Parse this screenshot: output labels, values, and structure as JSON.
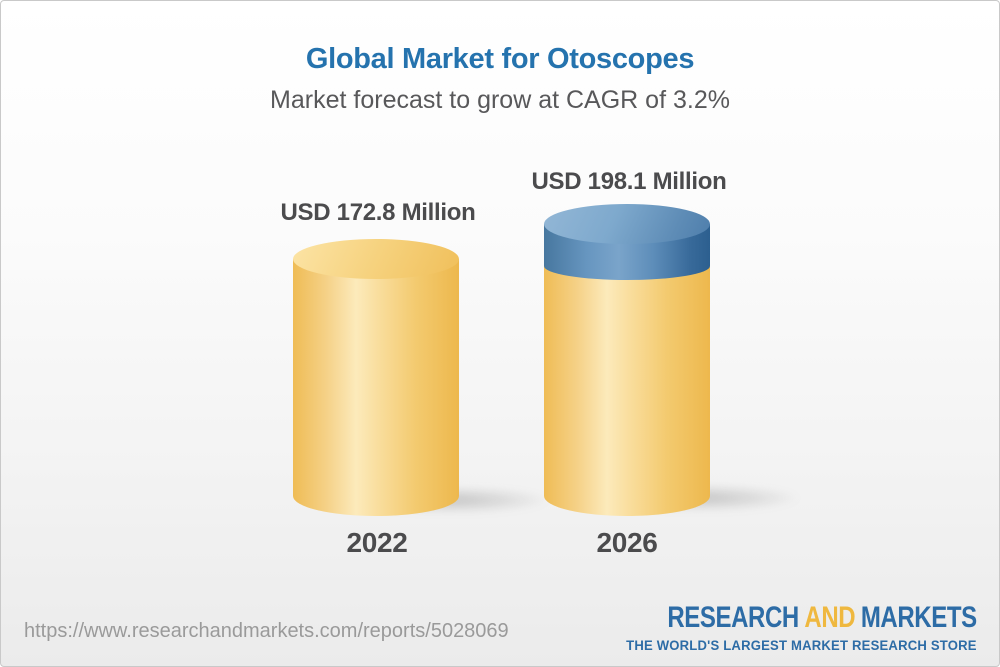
{
  "header": {
    "title": "Global Market for Otoscopes",
    "subtitle": "Market forecast to grow at CAGR of 3.2%"
  },
  "chart_data": {
    "type": "bar",
    "title": "Global Market for Otoscopes",
    "subtitle": "Market forecast to grow at CAGR of 3.2%",
    "cagr_percent": 3.2,
    "unit": "USD Million",
    "categories": [
      "2022",
      "2026"
    ],
    "values": [
      172.8,
      198.1
    ],
    "value_labels": [
      "USD 172.8 Million",
      "USD 198.1 Million"
    ],
    "legend_position": "none",
    "grid": false,
    "style": "3d-cylinder",
    "colors": {
      "cylinder_base": "#f3c96b",
      "cylinder_highlight": "#fcebbc",
      "increment_band": "#5d8db9",
      "increment_band_dark": "#2c5f8f",
      "label_text": "#4b4b4d",
      "title_text": "#2573ae"
    }
  },
  "footer": {
    "url": "https://www.researchandmarkets.com/reports/5028069",
    "logo": {
      "part_research": "RESEARCH",
      "part_and": "AND",
      "part_markets": "MARKETS",
      "tagline": "THE WORLD'S LARGEST MARKET RESEARCH STORE",
      "blue": "#2d6ca6",
      "gold": "#efb83f"
    }
  }
}
